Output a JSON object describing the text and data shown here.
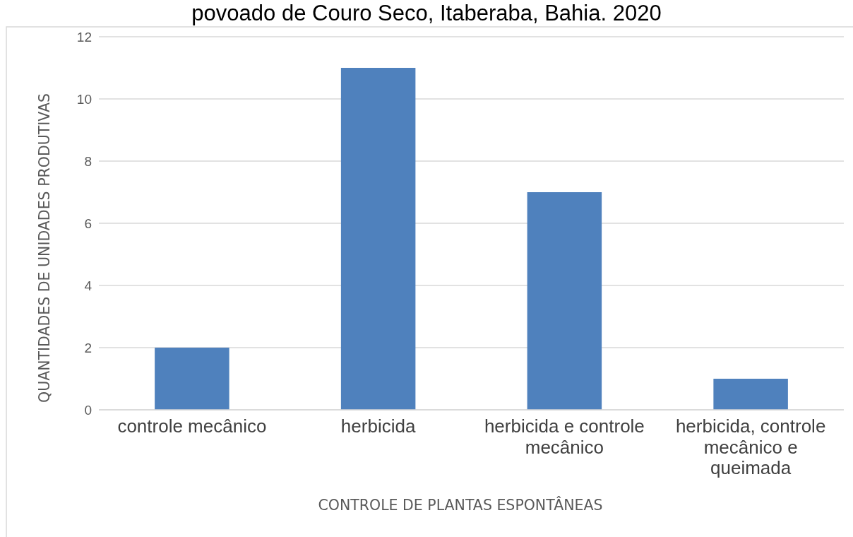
{
  "chart_data": {
    "type": "bar",
    "title": "povoado de Couro Seco, Itaberaba, Bahia. 2020",
    "xlabel": "CONTROLE DE PLANTAS ESPONTÂNEAS",
    "ylabel": "QUANTIDADES DE UNIDADES PRODUTIVAS",
    "categories": [
      "controle mecânico",
      "herbicida",
      "herbicida e controle mecânico",
      "herbicida, controle mecânico e queimada"
    ],
    "values": [
      2,
      11,
      7,
      1
    ],
    "color": "#4f81bd",
    "ylim": [
      0,
      12
    ],
    "yticks": [
      0,
      2,
      4,
      6,
      8,
      10,
      12
    ],
    "grid": "y"
  }
}
